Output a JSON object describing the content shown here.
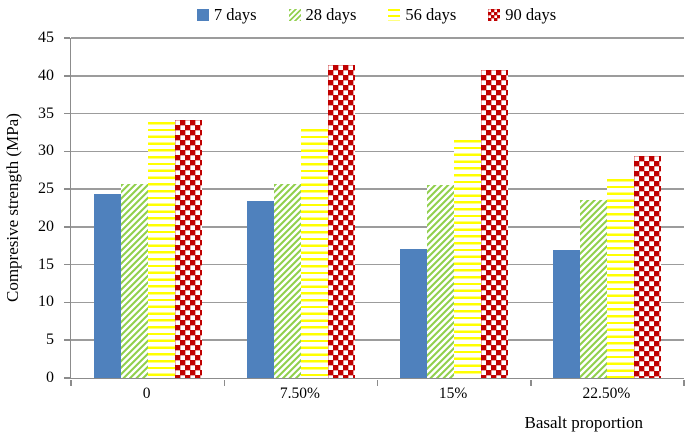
{
  "chart_data": {
    "type": "bar",
    "categories": [
      "0",
      "7.50%",
      "15%",
      "22.50%"
    ],
    "series": [
      {
        "name": "7 days",
        "pattern": "solid",
        "color": "#4F81BD",
        "values": [
          24.4,
          23.4,
          17.1,
          17.0
        ]
      },
      {
        "name": "28 days",
        "pattern": "diag",
        "color": "#92D050",
        "values": [
          25.7,
          25.7,
          25.6,
          23.6
        ]
      },
      {
        "name": "56 days",
        "pattern": "hlines",
        "color": "#FFFF00",
        "values": [
          33.9,
          33.0,
          31.5,
          26.4
        ]
      },
      {
        "name": "90 days",
        "pattern": "checker",
        "color": "#C00000",
        "values": [
          34.2,
          41.4,
          40.8,
          29.4
        ]
      }
    ],
    "title": "",
    "xlabel": "Basalt proportion",
    "ylabel": "Compresive strength (MPa)",
    "ylim": [
      0,
      45
    ],
    "ytick_step": 5,
    "yticks": [
      0,
      5,
      10,
      15,
      20,
      25,
      30,
      35,
      40,
      45
    ],
    "grid": true,
    "legend_position": "top"
  },
  "colors": {
    "gridline": "#9C9C9C",
    "axis": "#8C8C8C",
    "checker_mesh": "rgba(192,0,0,0.35)",
    "background": "#FFFFFF",
    "text": "#000000"
  }
}
